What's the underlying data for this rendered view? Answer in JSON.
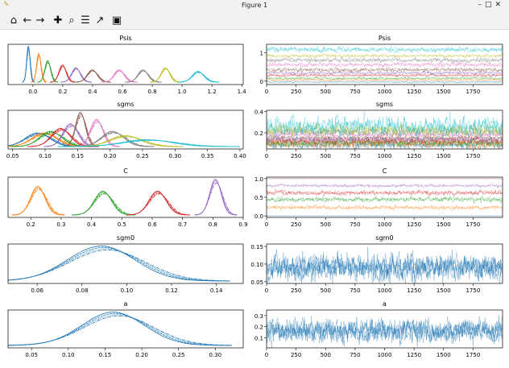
{
  "window": {
    "title": "Figure 1"
  },
  "toolbar": [
    {
      "name": "home-icon",
      "glyph": "⌂"
    },
    {
      "name": "back-icon",
      "glyph": "←"
    },
    {
      "name": "forward-icon",
      "glyph": "→"
    },
    {
      "name": "pan-icon",
      "glyph": "✚"
    },
    {
      "name": "zoom-icon",
      "glyph": "⌕"
    },
    {
      "name": "configure-subplots-icon",
      "glyph": "☰"
    },
    {
      "name": "edit-axis-icon",
      "glyph": "↗"
    },
    {
      "name": "save-icon",
      "glyph": "▣"
    }
  ],
  "colors": [
    "#1f77b4",
    "#ff7f0e",
    "#2ca02c",
    "#d62728",
    "#9467bd",
    "#8c564b",
    "#e377c2",
    "#7f7f7f",
    "#bcbd22",
    "#17becf"
  ],
  "chart_data": [
    {
      "type": "line",
      "kind": "kde",
      "title": "Psis",
      "xlim": [
        -0.167,
        1.41
      ],
      "xticks": [
        "0.0",
        "0.2",
        "0.4",
        "0.6",
        "0.8",
        "1.0",
        "1.2",
        "1.4"
      ],
      "series_means": [
        -0.03,
        0.04,
        0.1,
        0.2,
        0.29,
        0.4,
        0.58,
        0.74,
        0.89,
        1.11
      ],
      "series_sd": [
        0.012,
        0.015,
        0.02,
        0.025,
        0.03,
        0.035,
        0.035,
        0.035,
        0.03,
        0.04
      ]
    },
    {
      "type": "line",
      "kind": "trace",
      "title": "Psis",
      "xlim": [
        0,
        2000
      ],
      "ylim": [
        -0.12,
        1.3
      ],
      "xticks": [
        "0",
        "250",
        "500",
        "750",
        "1000",
        "1250",
        "1500",
        "1750"
      ],
      "yticks": [
        "0",
        "1"
      ],
      "series_means": [
        -0.03,
        0.04,
        0.1,
        0.2,
        0.29,
        0.4,
        0.58,
        0.74,
        0.89,
        1.11
      ],
      "series_sd": [
        0.012,
        0.015,
        0.02,
        0.025,
        0.03,
        0.035,
        0.035,
        0.035,
        0.03,
        0.04
      ]
    },
    {
      "type": "line",
      "kind": "kde",
      "title": "sgms",
      "xlim": [
        0.043,
        0.405
      ],
      "xticks": [
        "0.05",
        "0.10",
        "0.15",
        "0.20",
        "0.25",
        "0.30",
        "0.35",
        "0.40"
      ],
      "series_means": [
        0.09,
        0.1,
        0.11,
        0.125,
        0.14,
        0.155,
        0.18,
        0.205,
        0.225,
        0.26
      ],
      "series_sd": [
        0.02,
        0.02,
        0.018,
        0.015,
        0.012,
        0.008,
        0.01,
        0.018,
        0.025,
        0.04
      ]
    },
    {
      "type": "line",
      "kind": "trace",
      "title": "sgms",
      "xlim": [
        0,
        2000
      ],
      "ylim": [
        0.05,
        0.41
      ],
      "xticks": [
        "0",
        "250",
        "500",
        "750",
        "1000",
        "1250",
        "1500",
        "1750"
      ],
      "yticks": [
        "0.2",
        "0.4"
      ],
      "series_means": [
        0.09,
        0.1,
        0.11,
        0.125,
        0.14,
        0.155,
        0.18,
        0.205,
        0.225,
        0.26
      ],
      "series_sd": [
        0.02,
        0.02,
        0.018,
        0.015,
        0.012,
        0.008,
        0.01,
        0.018,
        0.025,
        0.04
      ]
    },
    {
      "type": "line",
      "kind": "kde",
      "title": "C",
      "xlim": [
        0.125,
        0.9
      ],
      "xticks": [
        "0.2",
        "0.3",
        "0.4",
        "0.5",
        "0.6",
        "0.7",
        "0.8",
        "0.9"
      ],
      "series_means": [
        null,
        0.225,
        0.44,
        0.62,
        0.81
      ],
      "series_sd": [
        null,
        0.025,
        0.03,
        0.03,
        0.02
      ]
    },
    {
      "type": "line",
      "kind": "trace",
      "title": "C",
      "xlim": [
        0,
        2000
      ],
      "ylim": [
        -0.04,
        1.04
      ],
      "xticks": [
        "0",
        "250",
        "500",
        "750",
        "1000",
        "1250",
        "1500",
        "1750"
      ],
      "yticks": [
        "0.0",
        "0.5",
        "1.0"
      ],
      "series_means": [
        0.0,
        0.225,
        0.44,
        0.62,
        0.81,
        1.0
      ],
      "series_sd": [
        0,
        0.025,
        0.03,
        0.03,
        0.02,
        0
      ]
    },
    {
      "type": "line",
      "kind": "kde",
      "title": "sgm0",
      "xlim": [
        0.047,
        0.152
      ],
      "xticks": [
        "0.06",
        "0.08",
        "0.10",
        "0.12",
        "0.14"
      ],
      "series_means": [
        0.09
      ],
      "series_sd": [
        0.016
      ]
    },
    {
      "type": "line",
      "kind": "trace",
      "title": "sgm0",
      "xlim": [
        0,
        2000
      ],
      "ylim": [
        0.045,
        0.157
      ],
      "xticks": [
        "0",
        "250",
        "500",
        "750",
        "1000",
        "1250",
        "1500",
        "1750"
      ],
      "yticks": [
        "0.05",
        "0.10",
        "0.15"
      ],
      "series_means": [
        0.09
      ],
      "series_sd": [
        0.016
      ]
    },
    {
      "type": "line",
      "kind": "kde",
      "title": "a",
      "xlim": [
        0.018,
        0.338
      ],
      "xticks": [
        "0.05",
        "0.10",
        "0.15",
        "0.20",
        "0.25",
        "0.30"
      ],
      "series_means": [
        0.165
      ],
      "series_sd": [
        0.045
      ]
    },
    {
      "type": "line",
      "kind": "trace",
      "title": "a",
      "xlim": [
        0,
        2000
      ],
      "ylim": [
        0.01,
        0.35
      ],
      "xticks": [
        "0",
        "250",
        "500",
        "750",
        "1000",
        "1250",
        "1500",
        "1750"
      ],
      "yticks": [
        "0.1",
        "0.2",
        "0.3"
      ],
      "series_means": [
        0.165
      ],
      "series_sd": [
        0.045
      ]
    }
  ]
}
